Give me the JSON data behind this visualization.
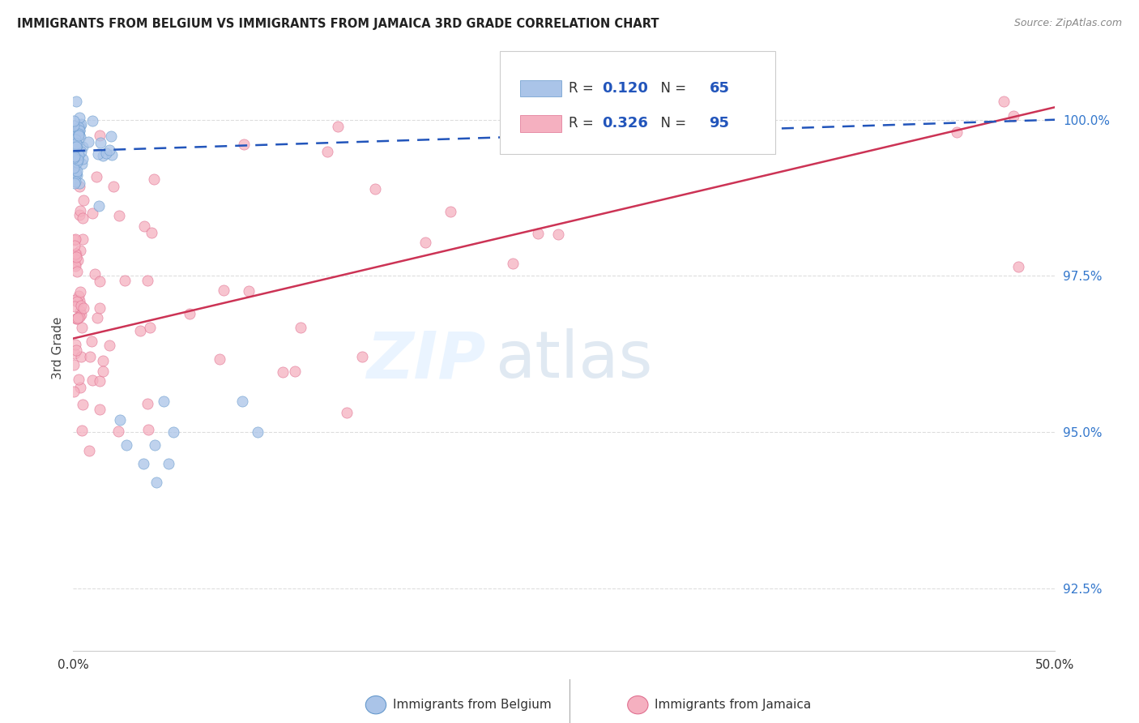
{
  "title": "IMMIGRANTS FROM BELGIUM VS IMMIGRANTS FROM JAMAICA 3RD GRADE CORRELATION CHART",
  "source": "Source: ZipAtlas.com",
  "ylabel": "3rd Grade",
  "yticks": [
    92.5,
    95.0,
    97.5,
    100.0
  ],
  "ytick_labels": [
    "92.5%",
    "95.0%",
    "97.5%",
    "100.0%"
  ],
  "xlim": [
    0.0,
    50.0
  ],
  "ylim": [
    91.5,
    101.2
  ],
  "belgium_color": "#aac4e8",
  "jamaica_color": "#f5b0c0",
  "belgium_edge": "#6699cc",
  "jamaica_edge": "#e07090",
  "trendline_belgium_color": "#2255bb",
  "trendline_jamaica_color": "#cc3355",
  "R_belgium": 0.12,
  "N_belgium": 65,
  "R_jamaica": 0.326,
  "N_jamaica": 95,
  "legend_label_belgium": "Immigrants from Belgium",
  "legend_label_jamaica": "Immigrants from Jamaica",
  "watermark_zip": "ZIP",
  "watermark_atlas": "atlas",
  "grid_color": "#dddddd",
  "bottom_axis_color": "#cccccc"
}
